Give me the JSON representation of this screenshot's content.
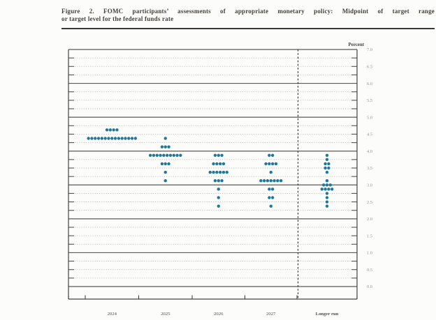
{
  "figure": {
    "title_line1": "Figure 2.  FOMC participants’ assessments of appropriate monetary policy:  Midpoint of target range",
    "title_line2": "or target level for the federal funds rate"
  },
  "chart_data": {
    "type": "scatter",
    "title": "FOMC participants' assessments of appropriate monetary policy: Midpoint of target range or target level for the federal funds rate",
    "ylabel": "Percent",
    "ylim": [
      0.0,
      7.0
    ],
    "y_major_step": 1.0,
    "y_minor_step": 0.25,
    "y_label_step": 0.5,
    "ytick_labels": [
      "7.0",
      "6.5",
      "6.0",
      "5.5",
      "5.0",
      "4.5",
      "4.0",
      "3.5",
      "3.0",
      "2.5",
      "2.0",
      "1.5",
      "1.0",
      "0.5",
      "0.0"
    ],
    "grid": "on",
    "legend_position": "none",
    "dot_color": "#1f7899",
    "dots_per_column": 19,
    "categories": [
      "2024",
      "2025",
      "2026",
      "2027",
      "Longer run"
    ],
    "series": [
      {
        "category": "2024",
        "dots": [
          {
            "rate": 4.625,
            "count": 4
          },
          {
            "rate": 4.375,
            "count": 15
          }
        ]
      },
      {
        "category": "2025",
        "dots": [
          {
            "rate": 4.375,
            "count": 1
          },
          {
            "rate": 4.125,
            "count": 3
          },
          {
            "rate": 3.875,
            "count": 10
          },
          {
            "rate": 3.625,
            "count": 3
          },
          {
            "rate": 3.375,
            "count": 1
          },
          {
            "rate": 3.125,
            "count": 1
          }
        ]
      },
      {
        "category": "2026",
        "dots": [
          {
            "rate": 3.875,
            "count": 3
          },
          {
            "rate": 3.625,
            "count": 4
          },
          {
            "rate": 3.375,
            "count": 6
          },
          {
            "rate": 3.125,
            "count": 3
          },
          {
            "rate": 2.875,
            "count": 1
          },
          {
            "rate": 2.625,
            "count": 1
          },
          {
            "rate": 2.375,
            "count": 1
          }
        ]
      },
      {
        "category": "2027",
        "dots": [
          {
            "rate": 3.875,
            "count": 2
          },
          {
            "rate": 3.625,
            "count": 4
          },
          {
            "rate": 3.375,
            "count": 1
          },
          {
            "rate": 3.125,
            "count": 7
          },
          {
            "rate": 2.875,
            "count": 2
          },
          {
            "rate": 2.625,
            "count": 2
          },
          {
            "rate": 2.375,
            "count": 1
          }
        ]
      },
      {
        "category": "Longer run",
        "dots": [
          {
            "rate": 3.875,
            "count": 1
          },
          {
            "rate": 3.75,
            "count": 1
          },
          {
            "rate": 3.625,
            "count": 2
          },
          {
            "rate": 3.5,
            "count": 2
          },
          {
            "rate": 3.375,
            "count": 1
          },
          {
            "rate": 3.125,
            "count": 1
          },
          {
            "rate": 3.0,
            "count": 3
          },
          {
            "rate": 2.875,
            "count": 4
          },
          {
            "rate": 2.75,
            "count": 1
          },
          {
            "rate": 2.625,
            "count": 1
          },
          {
            "rate": 2.5,
            "count": 1
          },
          {
            "rate": 2.375,
            "count": 1
          }
        ]
      }
    ]
  }
}
